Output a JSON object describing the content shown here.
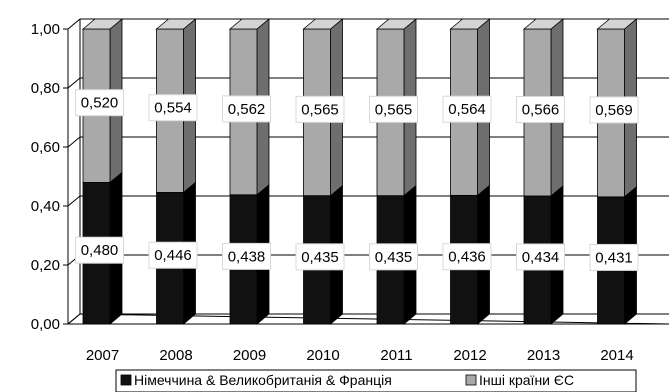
{
  "chart_data": {
    "type": "bar",
    "stacked": true,
    "style": "3d",
    "categories": [
      "2007",
      "2008",
      "2009",
      "2010",
      "2011",
      "2012",
      "2013",
      "2014"
    ],
    "series": [
      {
        "name": "Німеччина & Великобританія & Франція",
        "color": "#111111",
        "values": [
          0.48,
          0.446,
          0.438,
          0.435,
          0.435,
          0.436,
          0.434,
          0.431
        ],
        "labels": [
          "0,480",
          "0,446",
          "0,438",
          "0,435",
          "0,435",
          "0,436",
          "0,434",
          "0,431"
        ]
      },
      {
        "name": "Інші країни ЄС",
        "color": "#a9a9a9",
        "values": [
          0.52,
          0.554,
          0.562,
          0.565,
          0.565,
          0.564,
          0.566,
          0.569
        ],
        "labels": [
          "0,520",
          "0,554",
          "0,562",
          "0,565",
          "0,565",
          "0,564",
          "0,566",
          "0,569"
        ]
      }
    ],
    "ylim": [
      0,
      1
    ],
    "yticks": [
      0,
      0.2,
      0.4,
      0.6,
      0.8,
      1.0
    ],
    "ytick_labels": [
      "0,00",
      "0,20",
      "0,40",
      "0,60",
      "0,80",
      "1,00"
    ],
    "grid": true,
    "legend_position": "bottom",
    "xlabel": "",
    "ylabel": "",
    "title": ""
  }
}
